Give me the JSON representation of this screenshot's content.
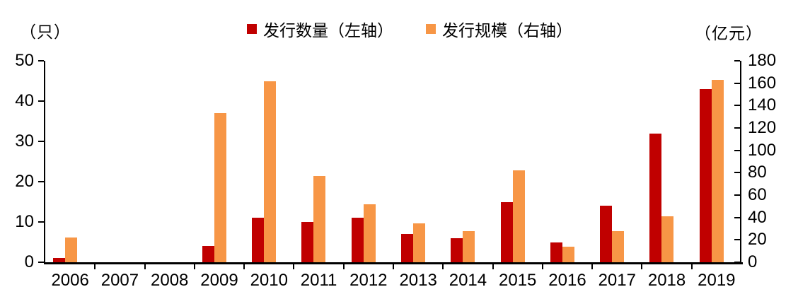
{
  "header": {
    "left_axis_unit": "（只）",
    "right_axis_unit": "（亿元）",
    "legend": [
      {
        "label": "发行数量（左轴）",
        "color": "#c00000"
      },
      {
        "label": "发行规模（右轴）",
        "color": "#f79646"
      }
    ]
  },
  "colors": {
    "count_series": "#c00000",
    "scale_series": "#f79646",
    "axis": "#000000"
  },
  "chart_data": {
    "type": "bar",
    "title": "",
    "categories": [
      "2006",
      "2007",
      "2008",
      "2009",
      "2010",
      "2011",
      "2012",
      "2013",
      "2014",
      "2015",
      "2016",
      "2017",
      "2018",
      "2019"
    ],
    "series": [
      {
        "id": "issuance-count",
        "name": "发行数量（左轴）",
        "axis": "left",
        "color": "#c00000",
        "values": [
          1,
          0,
          0,
          4,
          11,
          10,
          11,
          7,
          6,
          15,
          5,
          14,
          32,
          43
        ]
      },
      {
        "id": "issuance-scale",
        "name": "发行规模（右轴）",
        "axis": "right",
        "color": "#f79646",
        "values": [
          22,
          0,
          0,
          133,
          162,
          77,
          52,
          35,
          28,
          82,
          14,
          28,
          41,
          163
        ]
      }
    ],
    "left_axis": {
      "unit": "（只）",
      "min": 0,
      "max": 50,
      "ticks": [
        0,
        10,
        20,
        30,
        40,
        50
      ]
    },
    "right_axis": {
      "unit": "（亿元）",
      "min": 0,
      "max": 180,
      "ticks": [
        0,
        20,
        40,
        60,
        80,
        100,
        120,
        140,
        160,
        180
      ]
    },
    "grid": false,
    "legend_position": "top-center"
  }
}
